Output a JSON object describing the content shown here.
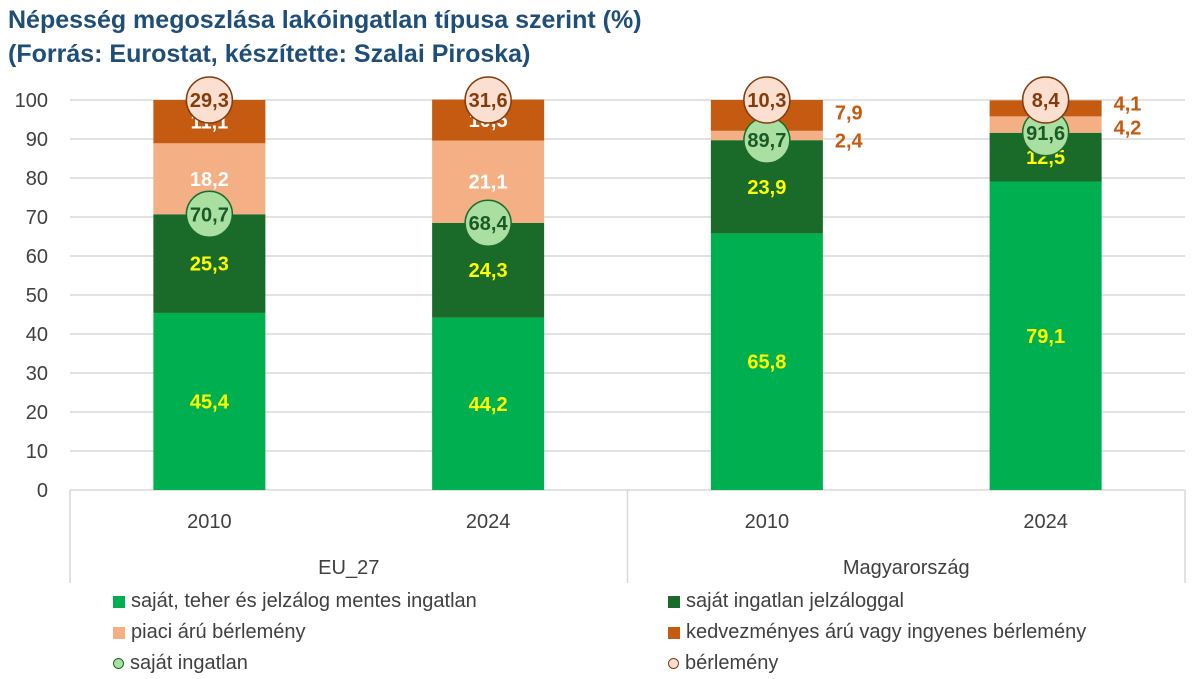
{
  "chart_data": {
    "type": "bar",
    "stacked": true,
    "title": "Népesség megoszlása lakóingatlan típusa szerint (%)",
    "subtitle": "(Forrás: Eurostat, készítette: Szalai Piroska)",
    "groups": [
      "EU_27",
      "Magyarország"
    ],
    "categories": [
      "2010",
      "2024",
      "2010",
      "2024"
    ],
    "ylim": [
      0,
      100
    ],
    "yticks": [
      0,
      10,
      20,
      30,
      40,
      50,
      60,
      70,
      80,
      90,
      100
    ],
    "grid": true,
    "legend_position": "bottom",
    "series": [
      {
        "name": "saját, teher és jelzálog mentes ingatlan",
        "color": "#00b050",
        "values": [
          45.4,
          44.2,
          65.8,
          79.1
        ],
        "labels": [
          "45,4",
          "44,2",
          "65,8",
          "79,1"
        ]
      },
      {
        "name": "saját ingatlan jelzáloggal",
        "color": "#1a6b2a",
        "values": [
          25.3,
          24.3,
          23.9,
          12.5
        ],
        "labels": [
          "25,3",
          "24,3",
          "23,9",
          "12,5"
        ]
      },
      {
        "name": "piaci árú bérlemény",
        "color": "#f4b084",
        "values": [
          18.2,
          21.1,
          2.4,
          4.2
        ],
        "labels": [
          "18,2",
          "21,1",
          "2,4",
          "4,2"
        ]
      },
      {
        "name": "kedvezményes árú vagy ingyenes bérlemény",
        "color": "#c55a11",
        "values": [
          11.1,
          10.5,
          7.9,
          4.1
        ],
        "labels": [
          "11,1",
          "10,5",
          "7,9",
          "4,1"
        ]
      }
    ],
    "markers": [
      {
        "name": "saját ingatlan",
        "fill": "#a9dfa0",
        "stroke": "#1a6b2a",
        "values": [
          70.7,
          68.4,
          89.7,
          91.6
        ],
        "labels": [
          "70,7",
          "68,4",
          "89,7",
          "91,6"
        ]
      },
      {
        "name": "bérlemény",
        "fill": "#fbe0d2",
        "stroke": "#843c0c",
        "values": [
          29.3,
          31.6,
          10.3,
          8.4
        ],
        "labels": [
          "29,3",
          "31,6",
          "10,3",
          "8,4"
        ]
      }
    ]
  }
}
